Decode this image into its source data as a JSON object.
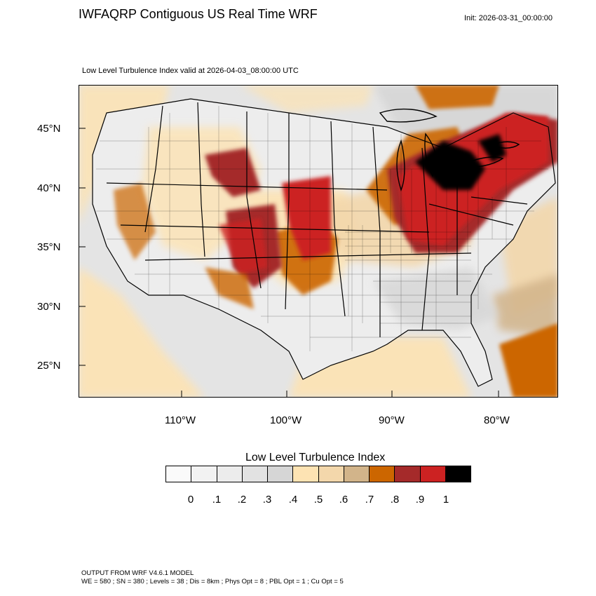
{
  "header": {
    "title": "IWFAQRP Contiguous US Real Time WRF",
    "init": "Init: 2026-03-31_00:00:00",
    "valid": "Low Level Turbulence Index valid at 2026-04-03_08:00:00 UTC"
  },
  "map": {
    "lat_labels": [
      "45°N",
      "40°N",
      "35°N",
      "30°N",
      "25°N"
    ],
    "lon_labels": [
      "110°W",
      "100°W",
      "90°W",
      "80°W"
    ],
    "background_color": "#e6e6e6"
  },
  "legend": {
    "title": "Low Level Turbulence Index",
    "tick_labels": [
      "0",
      ".1",
      ".2",
      ".3",
      ".4",
      ".5",
      ".6",
      ".7",
      ".8",
      ".9",
      "1"
    ],
    "colors": [
      "#fafafa",
      "#f2f2f2",
      "#ececec",
      "#e2e2e2",
      "#d6d6d6",
      "#fde3b3",
      "#f3d7ab",
      "#d2b48a",
      "#cc6600",
      "#a52a2a",
      "#cc2222",
      "#000000"
    ]
  },
  "footer": {
    "line1": "OUTPUT FROM WRF V4.6.1 MODEL",
    "line2": "WE = 580 ; SN = 380 ; Levels = 38 ; Dis = 8km ; Phys Opt = 8 ; PBL Opt = 1 ; Cu Opt = 5"
  }
}
